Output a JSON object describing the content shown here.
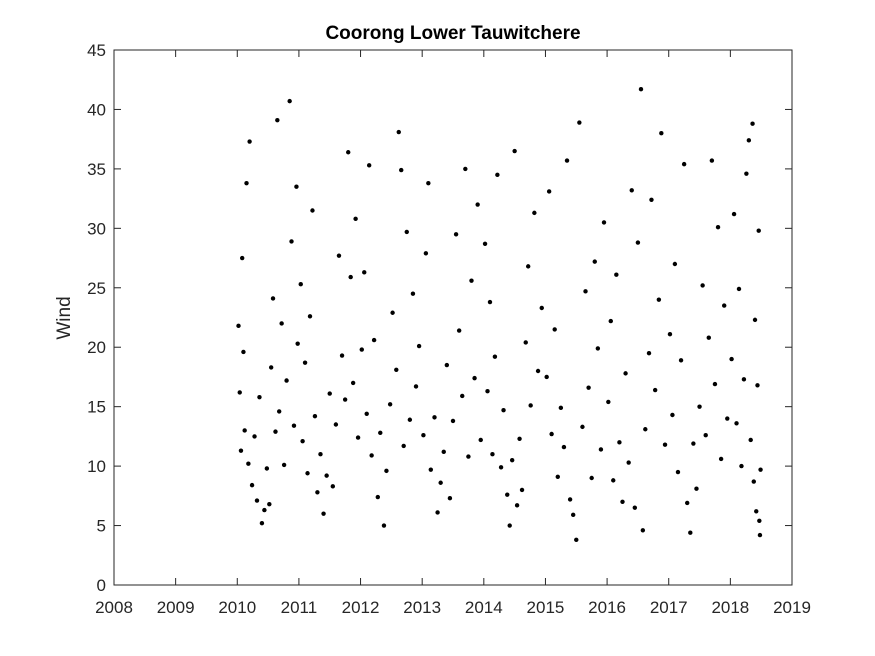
{
  "chart_data": {
    "type": "scatter",
    "title": "Coorong Lower Tauwitchere",
    "y_label": "Wind",
    "color": "#000000",
    "x": [
      2010.02,
      2010.04,
      2010.06,
      2010.08,
      2010.1,
      2010.12,
      2010.15,
      2010.18,
      2010.2,
      2010.24,
      2010.28,
      2010.32,
      2010.36,
      2010.4,
      2010.44,
      2010.48,
      2010.52,
      2010.55,
      2010.58,
      2010.62,
      2010.65,
      2010.68,
      2010.72,
      2010.76,
      2010.8,
      2010.85,
      2010.88,
      2010.92,
      2010.96,
      2010.98,
      2011.03,
      2011.06,
      2011.1,
      2011.14,
      2011.18,
      2011.22,
      2011.26,
      2011.3,
      2011.35,
      2011.4,
      2011.45,
      2011.5,
      2011.55,
      2011.6,
      2011.65,
      2011.7,
      2011.75,
      2011.8,
      2011.84,
      2011.88,
      2011.92,
      2011.96,
      2012.02,
      2012.06,
      2012.1,
      2012.14,
      2012.18,
      2012.22,
      2012.28,
      2012.32,
      2012.38,
      2012.42,
      2012.48,
      2012.52,
      2012.58,
      2012.62,
      2012.66,
      2012.7,
      2012.75,
      2012.8,
      2012.85,
      2012.9,
      2012.95,
      2013.02,
      2013.06,
      2013.1,
      2013.14,
      2013.2,
      2013.25,
      2013.3,
      2013.35,
      2013.4,
      2013.45,
      2013.5,
      2013.55,
      2013.6,
      2013.65,
      2013.7,
      2013.75,
      2013.8,
      2013.85,
      2013.9,
      2013.95,
      2014.02,
      2014.06,
      2014.1,
      2014.14,
      2014.18,
      2014.22,
      2014.28,
      2014.32,
      2014.38,
      2014.42,
      2014.46,
      2014.5,
      2014.54,
      2014.58,
      2014.62,
      2014.68,
      2014.72,
      2014.76,
      2014.82,
      2014.88,
      2014.94,
      2015.02,
      2015.06,
      2015.1,
      2015.15,
      2015.2,
      2015.25,
      2015.3,
      2015.35,
      2015.4,
      2015.45,
      2015.5,
      2015.55,
      2015.6,
      2015.65,
      2015.7,
      2015.75,
      2015.8,
      2015.85,
      2015.9,
      2015.95,
      2016.02,
      2016.06,
      2016.1,
      2016.15,
      2016.2,
      2016.25,
      2016.3,
      2016.35,
      2016.4,
      2016.45,
      2016.5,
      2016.55,
      2016.58,
      2016.62,
      2016.68,
      2016.72,
      2016.78,
      2016.84,
      2016.88,
      2016.94,
      2017.02,
      2017.06,
      2017.1,
      2017.15,
      2017.2,
      2017.25,
      2017.3,
      2017.35,
      2017.4,
      2017.45,
      2017.5,
      2017.55,
      2017.6,
      2017.65,
      2017.7,
      2017.75,
      2017.8,
      2017.85,
      2017.9,
      2017.95,
      2018.02,
      2018.06,
      2018.1,
      2018.14,
      2018.18,
      2018.22,
      2018.26,
      2018.3,
      2018.33,
      2018.36,
      2018.38,
      2018.4,
      2018.42,
      2018.44,
      2018.46,
      2018.47,
      2018.48,
      2018.49
    ],
    "values": [
      21.8,
      16.2,
      11.3,
      27.5,
      19.6,
      13.0,
      33.8,
      10.2,
      37.3,
      8.4,
      12.5,
      7.1,
      15.8,
      5.2,
      6.3,
      9.8,
      6.8,
      18.3,
      24.1,
      12.9,
      39.1,
      14.6,
      22.0,
      10.1,
      17.2,
      40.7,
      28.9,
      13.4,
      33.5,
      20.3,
      25.3,
      12.1,
      18.7,
      9.4,
      22.6,
      31.5,
      14.2,
      7.8,
      11.0,
      6.0,
      9.2,
      16.1,
      8.3,
      13.5,
      27.7,
      19.3,
      15.6,
      36.4,
      25.9,
      17.0,
      30.8,
      12.4,
      19.8,
      26.3,
      14.4,
      35.3,
      10.9,
      20.6,
      7.4,
      12.8,
      5.0,
      9.6,
      15.2,
      22.9,
      18.1,
      38.1,
      34.9,
      11.7,
      29.7,
      13.9,
      24.5,
      16.7,
      20.1,
      12.6,
      27.9,
      33.8,
      9.7,
      14.1,
      6.1,
      8.6,
      11.2,
      18.5,
      7.3,
      13.8,
      29.5,
      21.4,
      15.9,
      35.0,
      10.8,
      25.6,
      17.4,
      32.0,
      12.2,
      28.7,
      16.3,
      23.8,
      11.0,
      19.2,
      34.5,
      9.9,
      14.7,
      7.6,
      5.0,
      10.5,
      36.5,
      6.7,
      12.3,
      8.0,
      20.4,
      26.8,
      15.1,
      31.3,
      18.0,
      23.3,
      17.5,
      33.1,
      12.7,
      21.5,
      9.1,
      14.9,
      11.6,
      35.7,
      7.2,
      5.9,
      3.8,
      38.9,
      13.3,
      24.7,
      16.6,
      9.0,
      27.2,
      19.9,
      11.4,
      30.5,
      15.4,
      22.2,
      8.8,
      26.1,
      12.0,
      7.0,
      17.8,
      10.3,
      33.2,
      6.5,
      28.8,
      41.7,
      4.6,
      13.1,
      19.5,
      32.4,
      16.4,
      24.0,
      38.0,
      11.8,
      21.1,
      14.3,
      27.0,
      9.5,
      18.9,
      35.4,
      6.9,
      4.4,
      11.9,
      8.1,
      15.0,
      25.2,
      12.6,
      20.8,
      35.7,
      16.9,
      30.1,
      10.6,
      23.5,
      14.0,
      19.0,
      31.2,
      13.6,
      24.9,
      10.0,
      17.3,
      34.6,
      37.4,
      12.2,
      38.8,
      8.7,
      22.3,
      6.2,
      16.8,
      29.8,
      5.4,
      4.2,
      9.7
    ],
    "xlim": [
      2008,
      2019
    ],
    "xticks": [
      2008,
      2009,
      2010,
      2011,
      2012,
      2013,
      2014,
      2015,
      2016,
      2017,
      2018,
      2019
    ],
    "ylim": [
      0,
      45
    ],
    "yticks": [
      0,
      5,
      10,
      15,
      20,
      25,
      30,
      35,
      40,
      45
    ]
  }
}
